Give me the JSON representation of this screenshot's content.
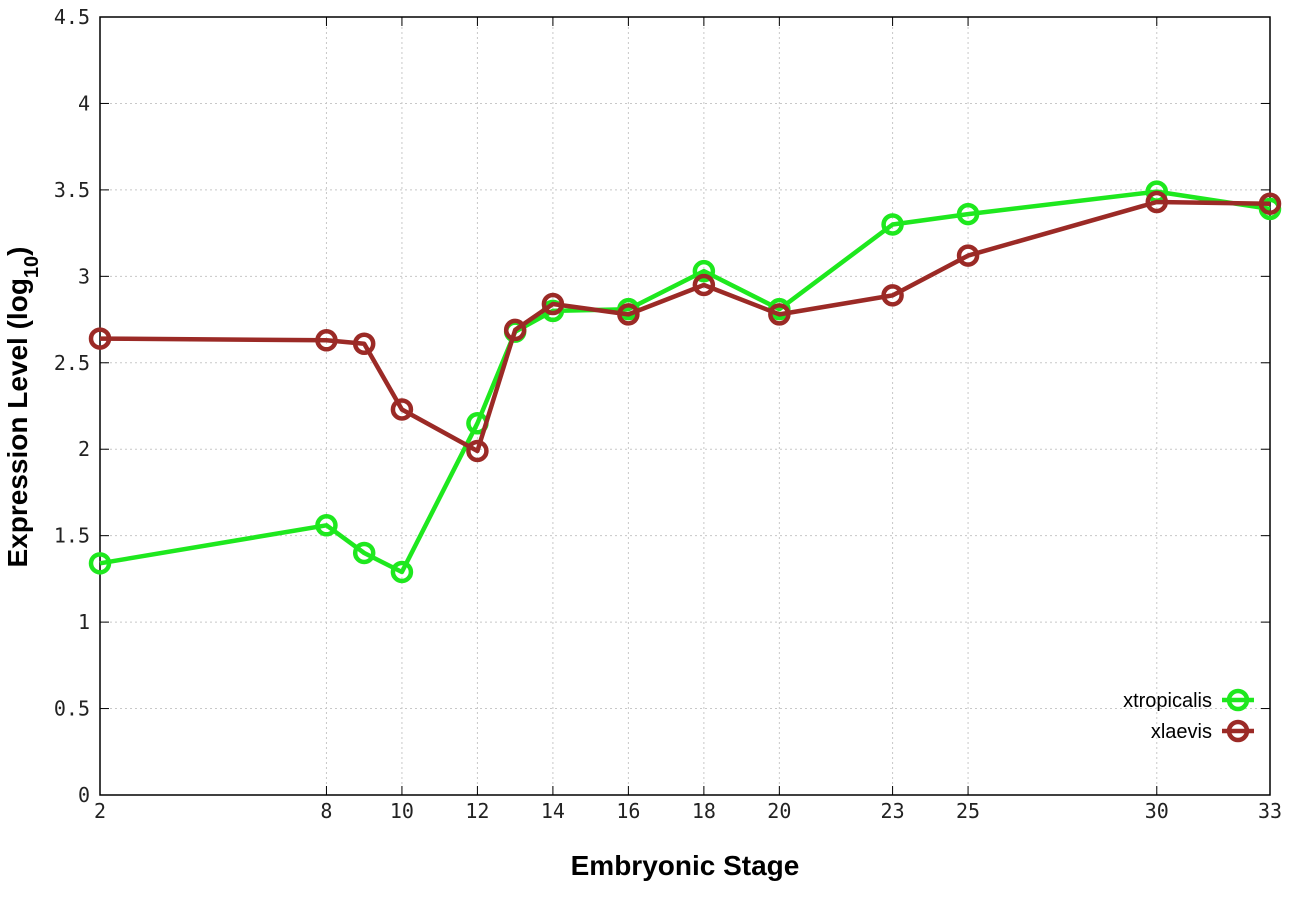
{
  "chart_data": {
    "type": "line",
    "title": "",
    "xlabel": "Embryonic Stage",
    "ylabel": {
      "text": "Expression Level (log",
      "subscript": "10",
      "suffix": ")"
    },
    "x": [
      2,
      8,
      9,
      10,
      12,
      13,
      14,
      16,
      18,
      20,
      23,
      25,
      30,
      33
    ],
    "x_ticks": [
      "2",
      "8",
      "10",
      "12",
      "14",
      "16",
      "18",
      "20",
      "23",
      "25",
      "30",
      "33"
    ],
    "xlim": [
      2,
      33
    ],
    "y_ticks": [
      "0",
      "0.5",
      "1",
      "1.5",
      "2",
      "2.5",
      "3",
      "3.5",
      "4",
      "4.5"
    ],
    "ylim": [
      0,
      4.5
    ],
    "grid": true,
    "legend_position": "bottom-right",
    "series": [
      {
        "name": "xtropicalis",
        "color": "#1ee81e",
        "marker": "open-circle",
        "values": [
          1.34,
          1.56,
          1.4,
          1.29,
          2.15,
          2.68,
          2.8,
          2.81,
          3.03,
          2.81,
          3.3,
          3.36,
          3.49,
          3.39
        ]
      },
      {
        "name": "xlaevis",
        "color": "#9b2a26",
        "marker": "open-circle",
        "values": [
          2.64,
          2.63,
          2.61,
          2.23,
          1.99,
          2.69,
          2.84,
          2.78,
          2.95,
          2.78,
          2.89,
          3.12,
          3.43,
          3.42
        ]
      }
    ]
  }
}
